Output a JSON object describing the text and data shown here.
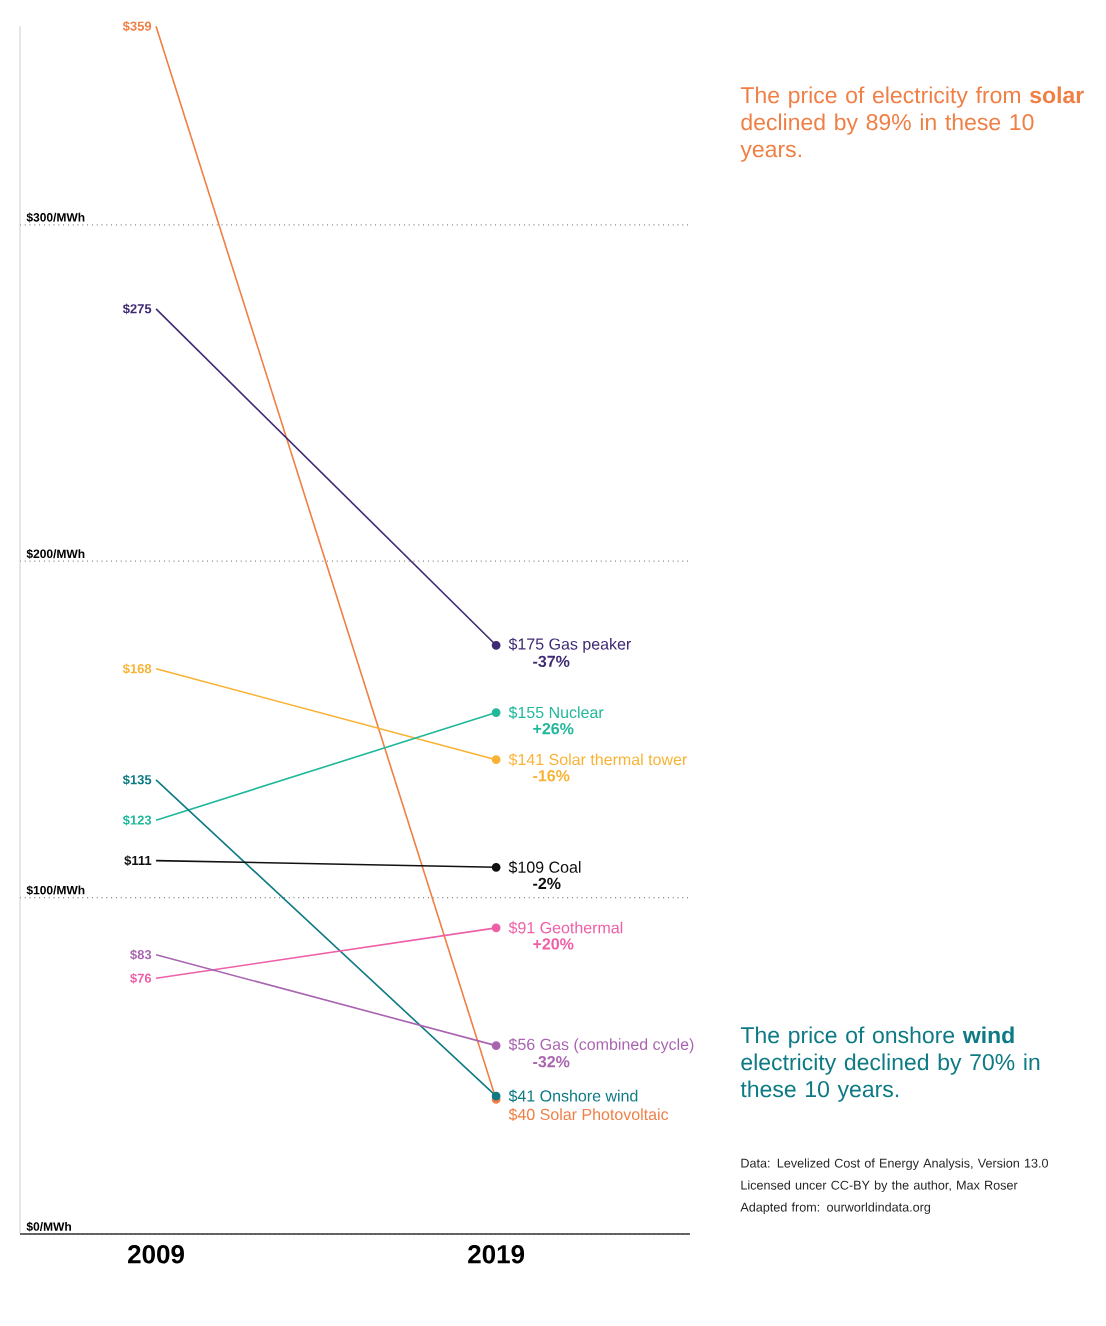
{
  "chart_data": {
    "type": "line",
    "categories": [
      "2009",
      "2019"
    ],
    "ylim": [
      0,
      359
    ],
    "yticks": [
      {
        "value": 0,
        "label": "$0/MWh"
      },
      {
        "value": 100,
        "label": "$100/MWh"
      },
      {
        "value": 200,
        "label": "$200/MWh"
      },
      {
        "value": 300,
        "label": "$300/MWh"
      }
    ],
    "grid": "y",
    "marker": "circle",
    "series": [
      {
        "name": "Solar Photovoltaic",
        "color": "#f07f45",
        "values": [
          359,
          40
        ],
        "value_labels": [
          "$359",
          "$40"
        ]
      },
      {
        "name": "Gas peaker",
        "color": "#3f2a73",
        "values": [
          275,
          175
        ],
        "value_labels": [
          "$275",
          "$175"
        ]
      },
      {
        "name": "Solar thermal tower",
        "color": "#f9b233",
        "values": [
          168,
          141
        ],
        "value_labels": [
          "$168",
          "$141"
        ]
      },
      {
        "name": "Nuclear",
        "color": "#1fb89a",
        "values": [
          123,
          155
        ],
        "value_labels": [
          "$123",
          "$155"
        ]
      },
      {
        "name": "Onshore wind",
        "color": "#0e7a84",
        "values": [
          135,
          41
        ],
        "value_labels": [
          "$135",
          "$41"
        ]
      },
      {
        "name": "Coal",
        "color": "#111111",
        "values": [
          111,
          109
        ],
        "value_labels": [
          "$111",
          "$109"
        ]
      },
      {
        "name": "Geothermal",
        "color": "#ee5fa7",
        "values": [
          76,
          91
        ],
        "value_labels": [
          "$76",
          "$91"
        ]
      },
      {
        "name": "Gas (combined cycle)",
        "color": "#a864b0",
        "values": [
          83,
          56
        ],
        "value_labels": [
          "$83",
          "$56"
        ]
      }
    ],
    "annotations": [
      "The price of electricity from **solar** declined by 89% in these 10 years.",
      "The price of onshore **wind** electricity  declined by 70% in these 10 years.",
      "Data: Levelized Cost of Energy Analysis, Version 13.0",
      "Licensed uncer CC-BY by the author, Max Roser",
      "Adapted from: ourworldindata.org",
      {
        "text": "-37%",
        "x": "2019",
        "y": 175
      },
      {
        "text": "+26%",
        "x": "2019",
        "y": 155
      },
      {
        "text": "-16%",
        "x": "2019",
        "y": 141
      },
      {
        "text": "-2%",
        "x": "2019",
        "y": 109
      },
      {
        "text": "+20%",
        "x": "2019",
        "y": 91
      },
      {
        "text": "-32%",
        "x": "2019",
        "y": 56
      }
    ]
  }
}
